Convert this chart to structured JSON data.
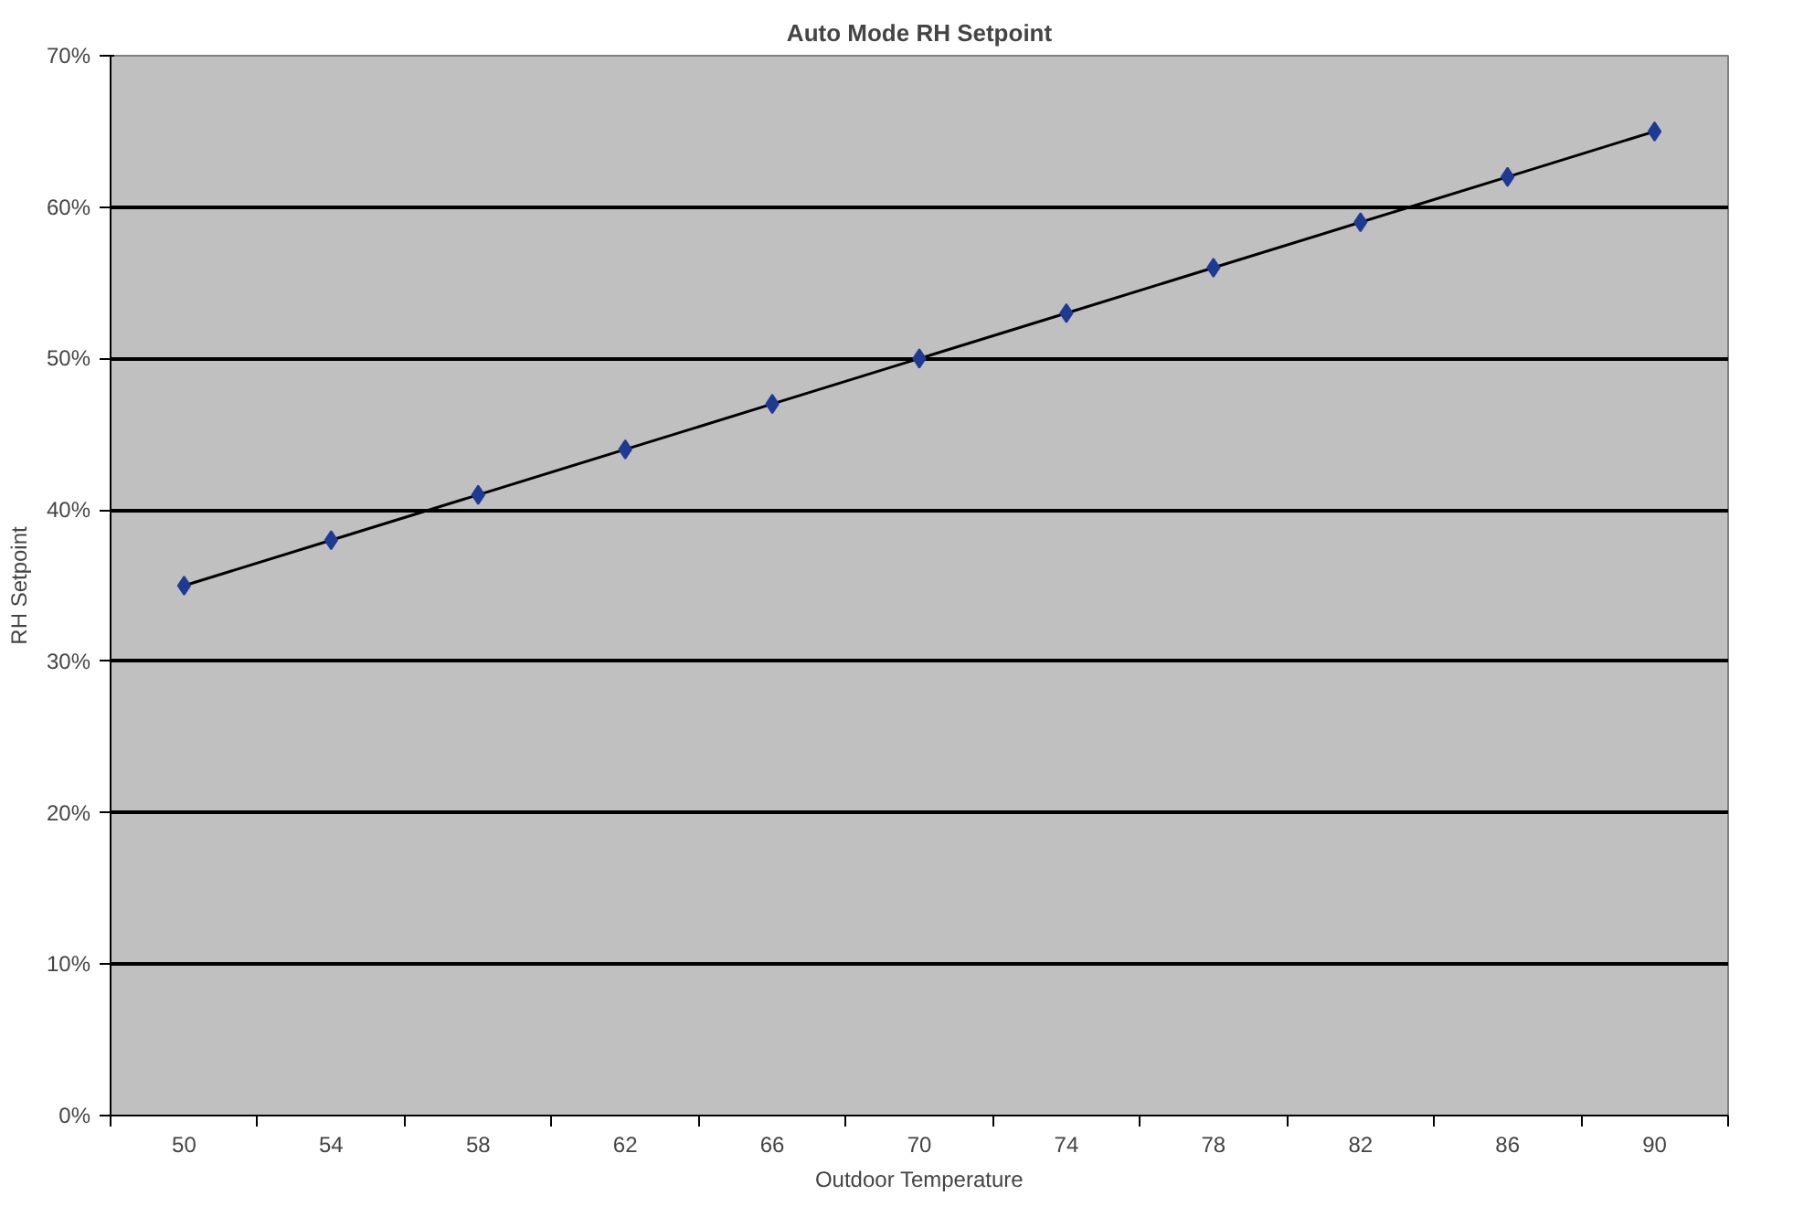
{
  "chart_data": {
    "type": "line",
    "title": "Auto Mode RH Setpoint",
    "xlabel": "Outdoor Temperature",
    "ylabel": "RH Setpoint",
    "categories": [
      "50",
      "54",
      "58",
      "62",
      "66",
      "70",
      "74",
      "78",
      "82",
      "86",
      "90"
    ],
    "series": [
      {
        "color": "#000000",
        "colors": [
          "#1f3a93",
          "#1f3a93",
          "#1f3a93",
          "#1f3a93",
          "#1f3a93",
          "#1f3a93",
          "#1f3a93",
          "#1f3a93",
          "#1f3a93",
          "#1f3a93",
          "#1f3a93"
        ],
        "values": [
          35,
          38,
          41,
          44,
          47,
          50,
          53,
          56,
          59,
          62,
          65
        ]
      }
    ],
    "ylim": [
      0,
      70
    ],
    "yticks": [
      {
        "value": 0,
        "label": "0%"
      },
      {
        "value": 10,
        "label": "10%"
      },
      {
        "value": 20,
        "label": "20%"
      },
      {
        "value": 30,
        "label": "30%"
      },
      {
        "value": 40,
        "label": "40%"
      },
      {
        "value": 50,
        "label": "50%"
      },
      {
        "value": 60,
        "label": "60%"
      },
      {
        "value": 70,
        "label": "70%"
      }
    ],
    "grid": "y",
    "marker": "diamond",
    "line_style": "solid"
  }
}
